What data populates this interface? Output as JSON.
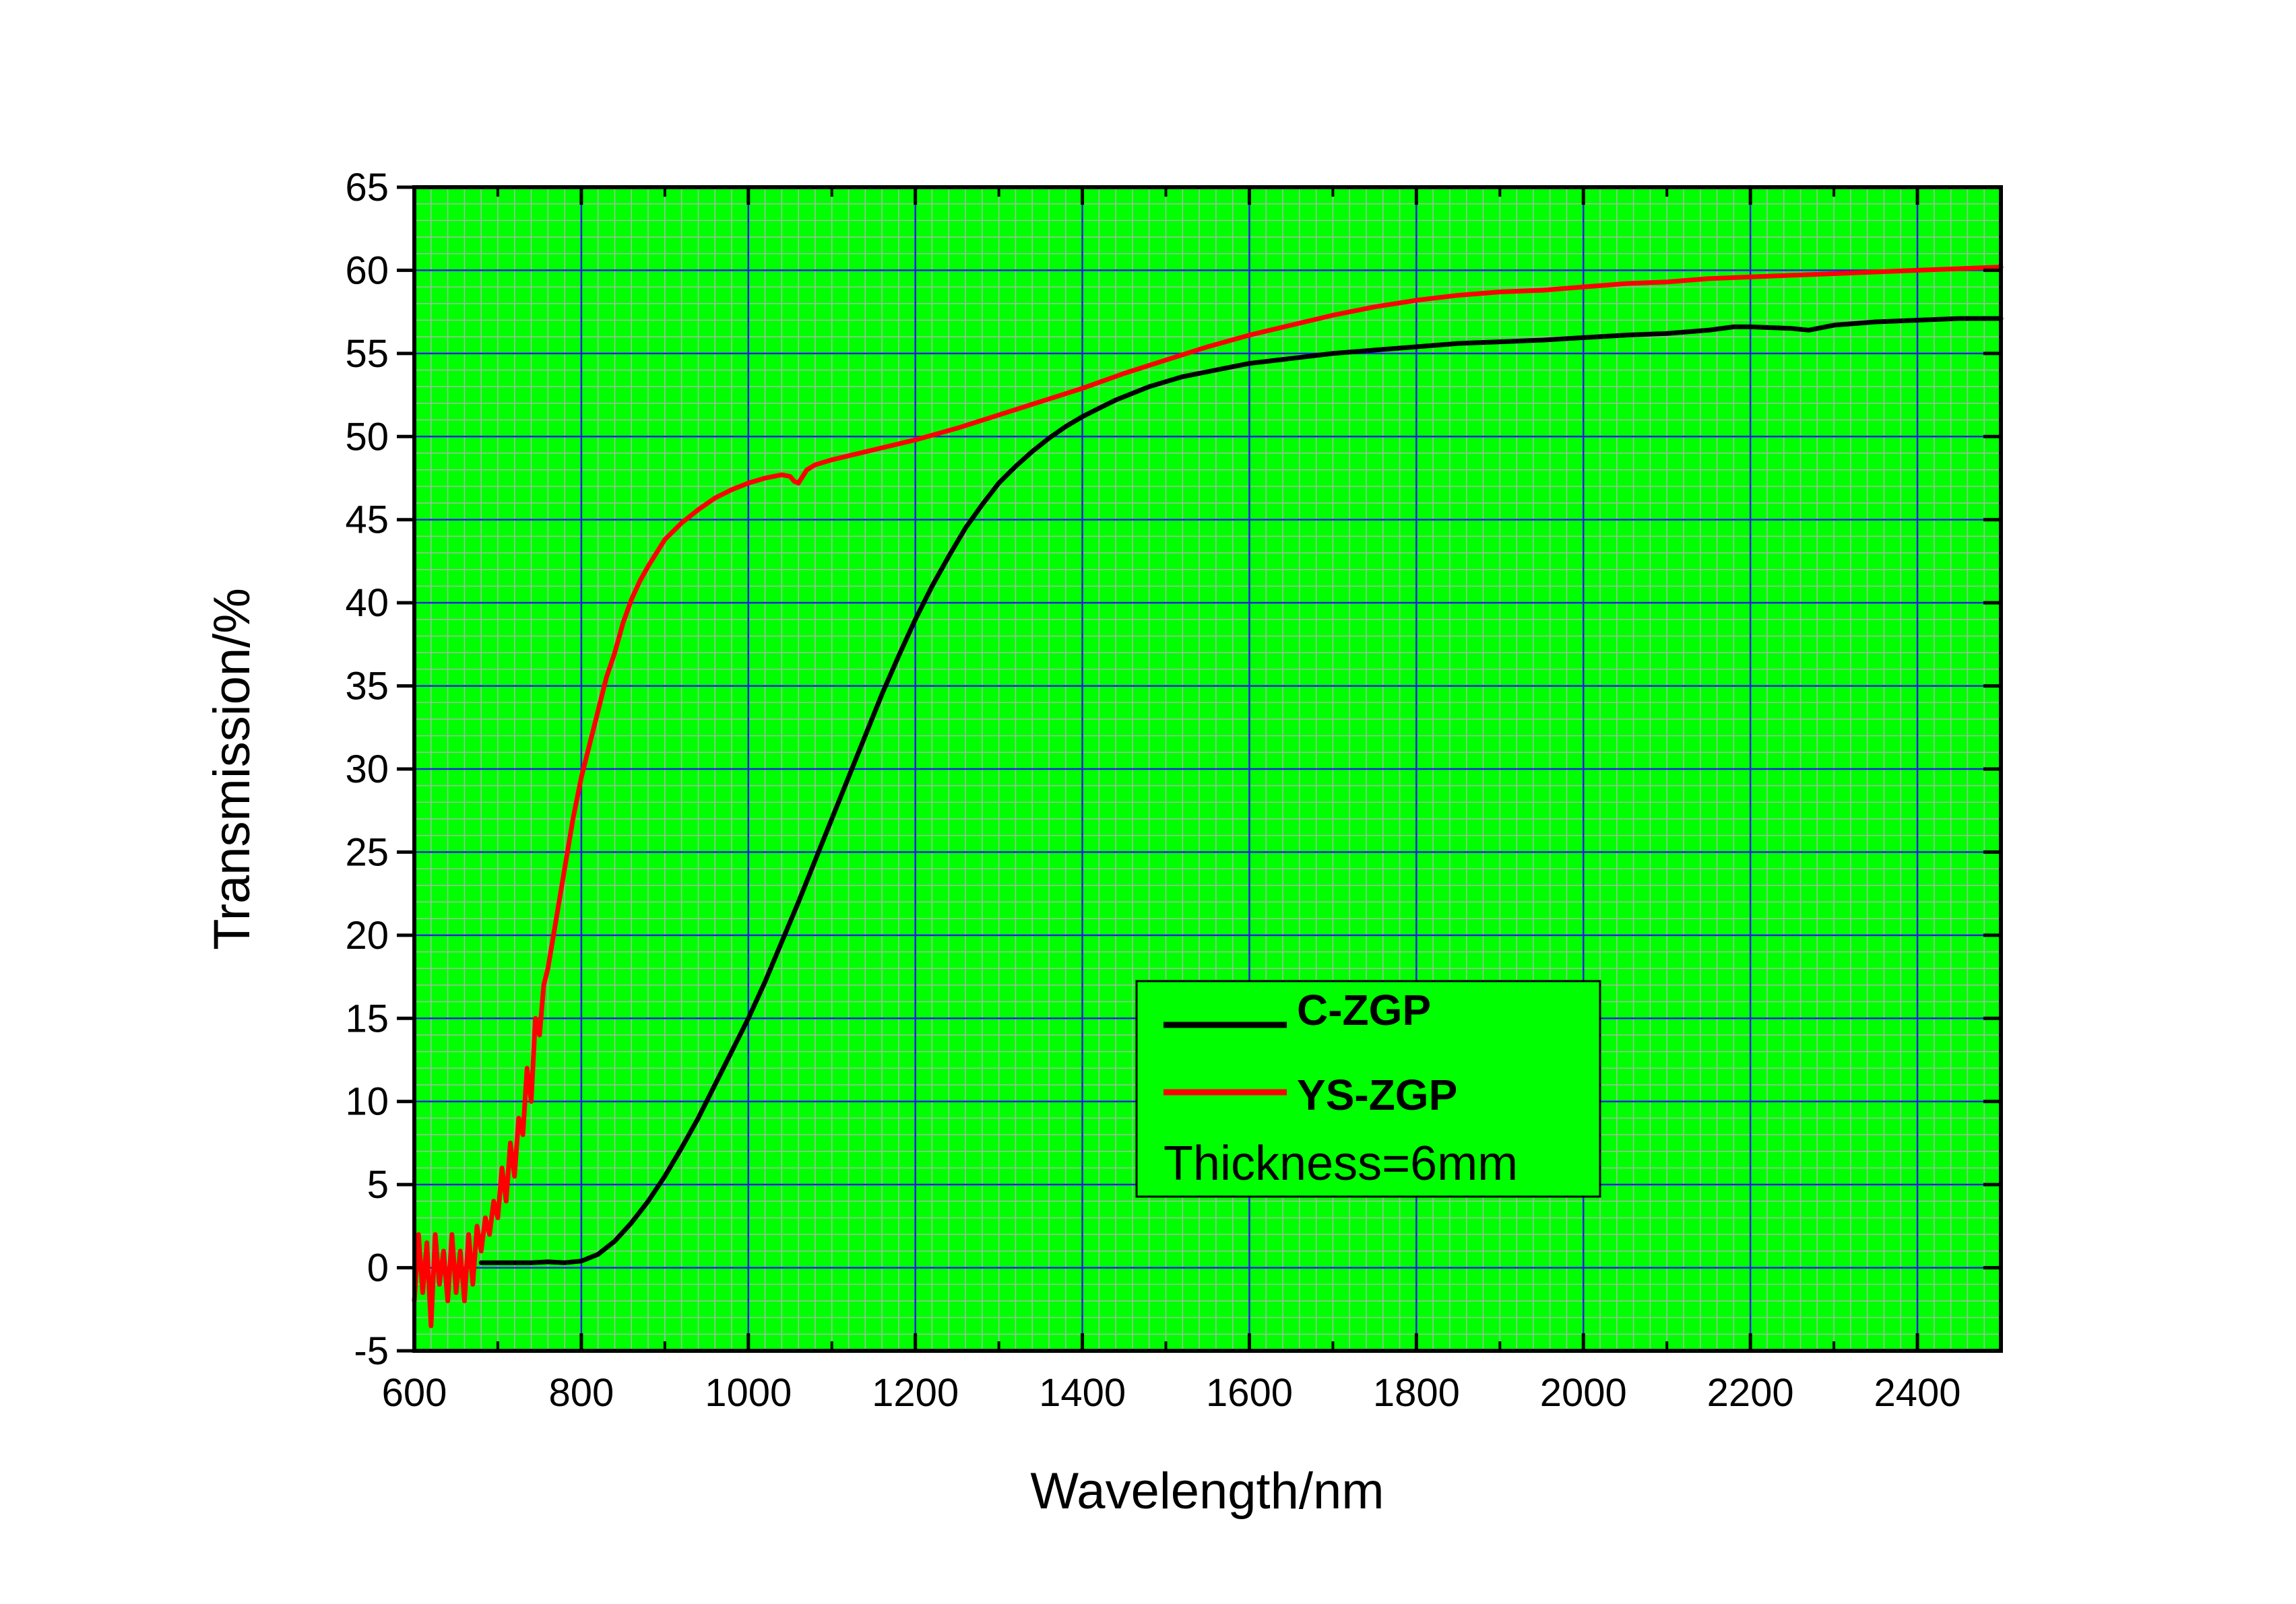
{
  "chart_data": {
    "type": "line",
    "title": "",
    "xlabel": "Wavelength/nm",
    "ylabel": "Transmission/%",
    "xlim": [
      600,
      2500
    ],
    "ylim": [
      -5,
      65
    ],
    "x_ticks": [
      600,
      800,
      1000,
      1200,
      1400,
      1600,
      1800,
      2000,
      2200,
      2400
    ],
    "y_ticks": [
      -5,
      0,
      5,
      10,
      15,
      20,
      25,
      30,
      35,
      40,
      45,
      50,
      55,
      60,
      65
    ],
    "grid": "major and minor",
    "legend_position": "lower-right",
    "annotation": "Thickness=6mm",
    "series": [
      {
        "name": "C-ZGP",
        "color": "#000000",
        "x": [
          680,
          700,
          720,
          740,
          760,
          780,
          800,
          820,
          840,
          860,
          880,
          900,
          920,
          940,
          960,
          980,
          1000,
          1020,
          1040,
          1060,
          1080,
          1100,
          1120,
          1140,
          1160,
          1180,
          1200,
          1220,
          1240,
          1260,
          1280,
          1300,
          1320,
          1340,
          1360,
          1380,
          1400,
          1420,
          1440,
          1460,
          1480,
          1500,
          1520,
          1540,
          1560,
          1580,
          1600,
          1650,
          1700,
          1750,
          1800,
          1850,
          1900,
          1950,
          2000,
          2050,
          2100,
          2150,
          2180,
          2200,
          2250,
          2270,
          2300,
          2350,
          2400,
          2450,
          2500
        ],
        "y": [
          0.3,
          0.3,
          0.3,
          0.3,
          0.35,
          0.3,
          0.4,
          0.8,
          1.6,
          2.7,
          4.0,
          5.5,
          7.2,
          9.0,
          11.0,
          13.0,
          15.0,
          17.2,
          19.6,
          22.0,
          24.5,
          27.0,
          29.5,
          32.0,
          34.5,
          36.8,
          39.0,
          41.0,
          42.8,
          44.5,
          45.9,
          47.2,
          48.2,
          49.1,
          49.9,
          50.6,
          51.2,
          51.7,
          52.2,
          52.6,
          53.0,
          53.3,
          53.6,
          53.8,
          54.0,
          54.2,
          54.4,
          54.7,
          55.0,
          55.2,
          55.4,
          55.6,
          55.7,
          55.8,
          55.95,
          56.1,
          56.2,
          56.4,
          56.6,
          56.6,
          56.5,
          56.4,
          56.7,
          56.9,
          57.0,
          57.1,
          57.1
        ]
      },
      {
        "name": "YS-ZGP",
        "color": "#ff0000",
        "x": [
          600,
          605,
          610,
          615,
          620,
          625,
          630,
          635,
          640,
          645,
          650,
          655,
          660,
          665,
          670,
          675,
          680,
          685,
          690,
          695,
          700,
          705,
          710,
          715,
          720,
          725,
          730,
          735,
          740,
          745,
          750,
          755,
          760,
          770,
          780,
          790,
          800,
          810,
          820,
          830,
          840,
          850,
          860,
          870,
          880,
          890,
          900,
          920,
          940,
          960,
          980,
          1000,
          1020,
          1040,
          1050,
          1055,
          1060,
          1065,
          1070,
          1080,
          1100,
          1150,
          1200,
          1250,
          1300,
          1350,
          1400,
          1450,
          1500,
          1550,
          1600,
          1650,
          1700,
          1750,
          1800,
          1850,
          1900,
          1950,
          2000,
          2050,
          2100,
          2150,
          2200,
          2250,
          2300,
          2350,
          2400,
          2450,
          2500
        ],
        "y": [
          -2.0,
          2.0,
          -1.5,
          1.5,
          -3.5,
          2.0,
          -1.0,
          1.0,
          -2.0,
          2.0,
          -1.5,
          1.0,
          -2.0,
          2.0,
          -1.0,
          2.5,
          1.0,
          3.0,
          2.0,
          4.0,
          3.0,
          6.0,
          4.0,
          7.5,
          5.5,
          9.0,
          8.0,
          12.0,
          10.0,
          15.0,
          14.0,
          17.0,
          18.0,
          21.0,
          24.0,
          27.0,
          29.5,
          31.5,
          33.5,
          35.5,
          37.0,
          38.8,
          40.2,
          41.3,
          42.2,
          43.0,
          43.8,
          44.8,
          45.6,
          46.3,
          46.8,
          47.2,
          47.5,
          47.7,
          47.6,
          47.3,
          47.2,
          47.6,
          48.0,
          48.3,
          48.6,
          49.2,
          49.8,
          50.5,
          51.3,
          52.1,
          52.9,
          53.8,
          54.6,
          55.4,
          56.1,
          56.7,
          57.3,
          57.8,
          58.2,
          58.5,
          58.7,
          58.8,
          59.0,
          59.2,
          59.3,
          59.5,
          59.6,
          59.7,
          59.8,
          59.9,
          60.0,
          60.1,
          60.2
        ]
      }
    ]
  }
}
